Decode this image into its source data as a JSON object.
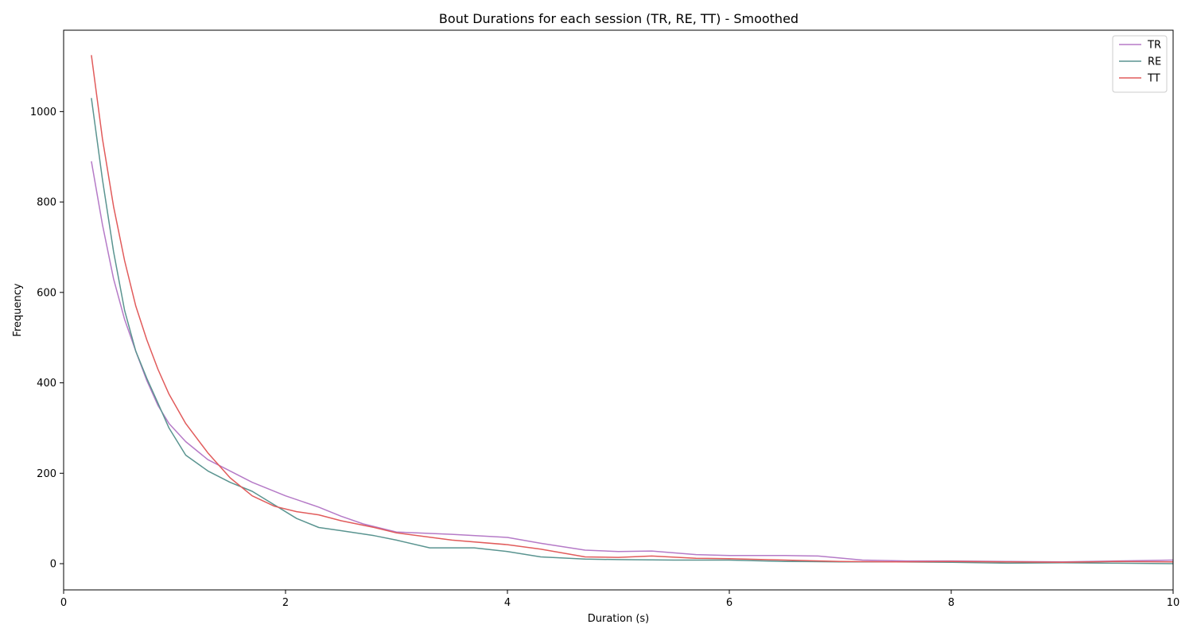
{
  "chart_data": {
    "type": "line",
    "title": "Bout Durations for each session (TR, RE, TT) - Smoothed",
    "xlabel": "Duration (s)",
    "ylabel": "Frequency",
    "xlim": [
      0,
      10
    ],
    "ylim": [
      -58,
      1180
    ],
    "xticks": [
      0,
      2,
      4,
      6,
      8,
      10
    ],
    "yticks": [
      0,
      200,
      400,
      600,
      800,
      1000
    ],
    "grid": false,
    "legend_position": "top-right",
    "series": [
      {
        "name": "TR",
        "color": "#b57ac7",
        "x": [
          0.25,
          0.35,
          0.45,
          0.55,
          0.65,
          0.75,
          0.85,
          0.95,
          1.1,
          1.3,
          1.5,
          1.7,
          2.0,
          2.3,
          2.5,
          2.7,
          3.0,
          3.5,
          4.0,
          4.3,
          4.7,
          5.0,
          5.3,
          5.7,
          6.0,
          6.5,
          6.8,
          7.2,
          7.6,
          8.0,
          8.5,
          9.0,
          9.5,
          10.0
        ],
        "values": [
          890,
          750,
          630,
          540,
          470,
          405,
          350,
          310,
          270,
          230,
          205,
          180,
          150,
          125,
          105,
          88,
          70,
          65,
          58,
          45,
          30,
          27,
          28,
          20,
          18,
          18,
          17,
          8,
          6,
          6,
          5,
          4,
          6,
          8
        ]
      },
      {
        "name": "RE",
        "color": "#5a9490",
        "x": [
          0.25,
          0.35,
          0.45,
          0.55,
          0.65,
          0.75,
          0.85,
          0.95,
          1.1,
          1.3,
          1.5,
          1.7,
          1.9,
          2.1,
          2.3,
          2.5,
          2.8,
          3.0,
          3.3,
          3.7,
          4.0,
          4.3,
          4.7,
          5.0,
          5.5,
          6.0,
          6.5,
          7.0,
          7.5,
          8.0,
          8.5,
          9.0,
          9.5,
          10.0
        ],
        "values": [
          1030,
          850,
          690,
          560,
          470,
          410,
          355,
          300,
          240,
          205,
          180,
          160,
          130,
          100,
          80,
          73,
          62,
          52,
          35,
          35,
          27,
          15,
          10,
          9,
          8,
          8,
          5,
          4,
          4,
          3,
          1,
          2,
          1,
          0
        ]
      },
      {
        "name": "TT",
        "color": "#e15b5b",
        "x": [
          0.25,
          0.35,
          0.45,
          0.55,
          0.65,
          0.75,
          0.85,
          0.95,
          1.1,
          1.3,
          1.5,
          1.7,
          1.9,
          2.1,
          2.3,
          2.5,
          2.8,
          3.0,
          3.5,
          4.0,
          4.3,
          4.7,
          5.0,
          5.3,
          5.7,
          6.0,
          6.5,
          7.0,
          7.5,
          8.0,
          8.5,
          9.0,
          9.5,
          10.0
        ],
        "values": [
          1125,
          940,
          790,
          670,
          570,
          495,
          430,
          375,
          310,
          245,
          190,
          150,
          127,
          115,
          108,
          95,
          80,
          68,
          52,
          42,
          32,
          15,
          14,
          17,
          12,
          11,
          8,
          5,
          4,
          5,
          4,
          3,
          5,
          4
        ]
      }
    ]
  }
}
